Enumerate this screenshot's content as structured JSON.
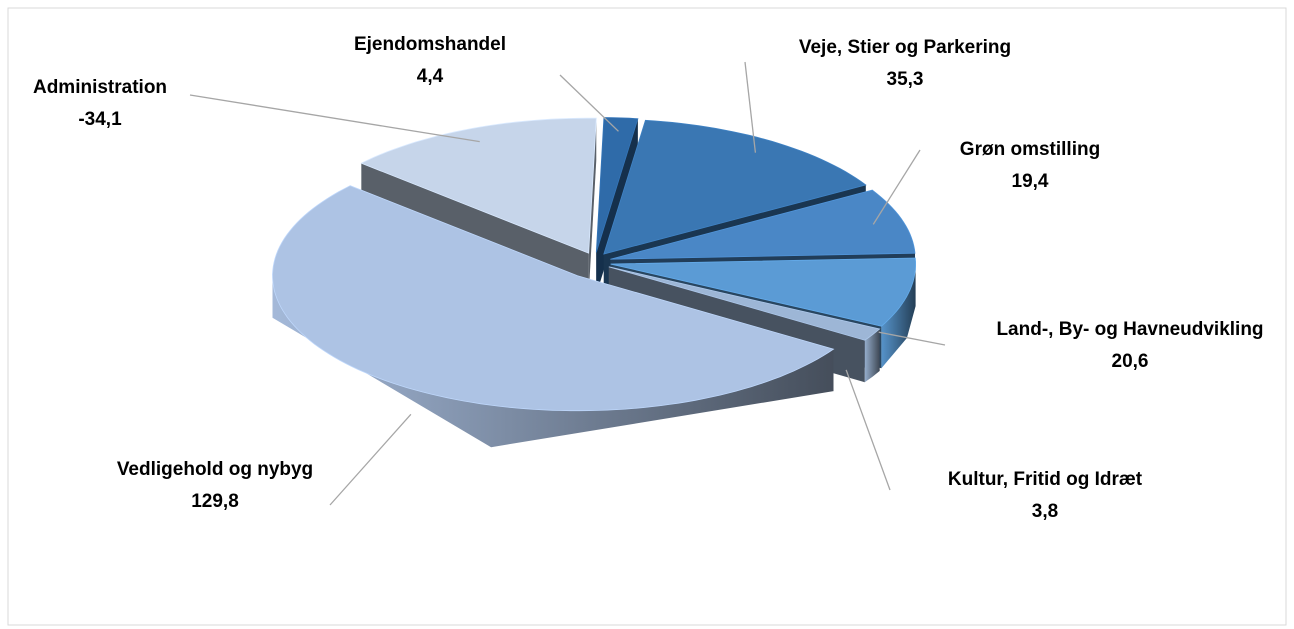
{
  "chart_data": {
    "type": "pie3d",
    "categories": [
      "Ejendomshandel",
      "Veje, Stier og Parkering",
      "Grøn omstilling",
      "Land-, By- og Havneudvikling",
      "Kultur, Fritid og Idræt",
      "Vedligehold og nybyg",
      "Administration"
    ],
    "values": [
      4.4,
      35.3,
      19.4,
      20.6,
      3.8,
      129.8,
      -34.1
    ],
    "value_labels": [
      "4,4",
      "35,3",
      "19,4",
      "20,6",
      "3,8",
      "129,8",
      "-34,1"
    ],
    "colors": [
      "#2f6ba9",
      "#3a77b3",
      "#4a87c6",
      "#5b9bd5",
      "#9db6d6",
      "#adc3e4",
      "#c6d5ea"
    ]
  }
}
